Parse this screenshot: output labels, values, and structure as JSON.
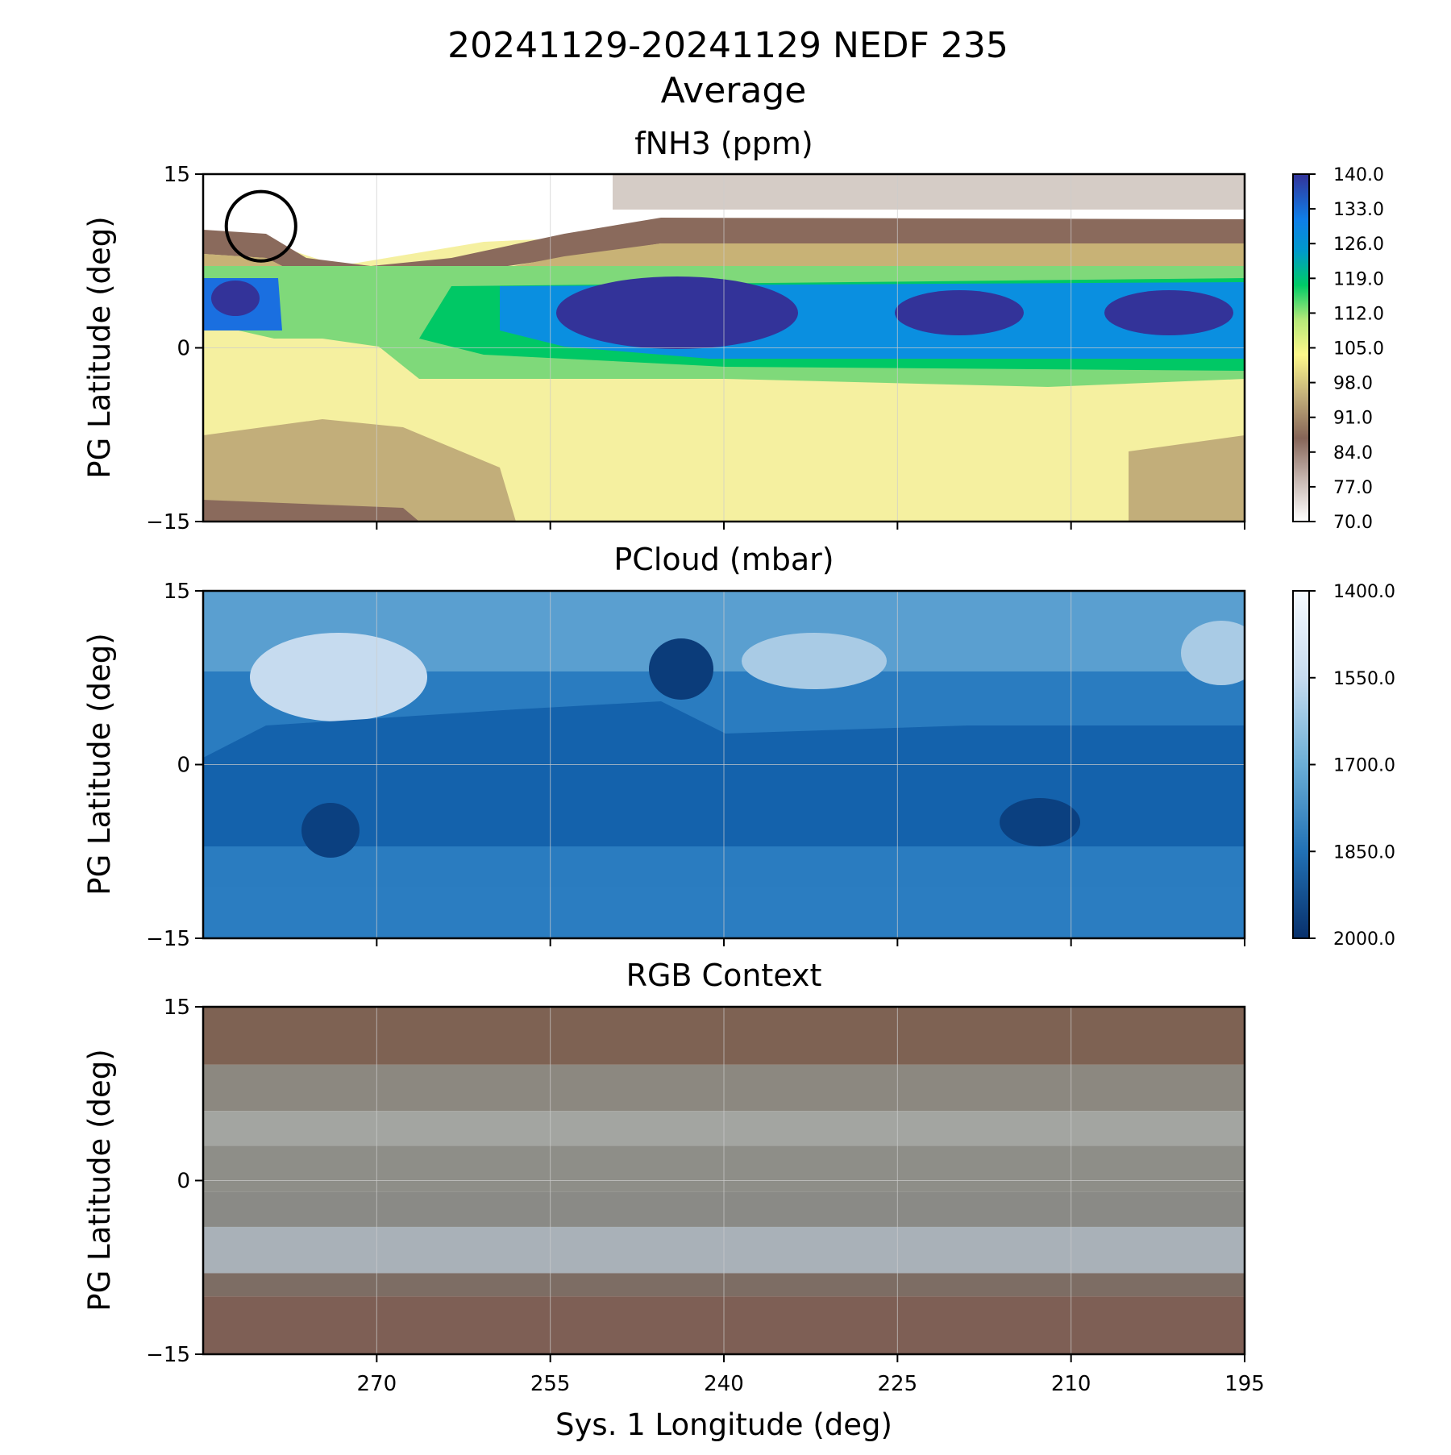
{
  "figure": {
    "title_line1": "20241129-20241129 NEDF 235",
    "title_line2": "Average",
    "xlabel": "Sys. 1 Longitude (deg)"
  },
  "chart_data": [
    {
      "type": "heatmap",
      "title": "fNH3 (ppm)",
      "xlabel": "",
      "ylabel": "PG Latitude (deg)",
      "xlim": [
        285,
        195
      ],
      "ylim": [
        -15,
        15
      ],
      "xticks": [
        270,
        255,
        240,
        225,
        210,
        195
      ],
      "yticks": [
        "15",
        "0",
        "−15"
      ],
      "colormap": "terrain_r",
      "colorbar": {
        "range": [
          70,
          140
        ],
        "ticks": [
          "140.0",
          "133.0",
          "126.0",
          "119.0",
          "112.0",
          "105.0",
          "98.0",
          "91.0",
          "84.0",
          "77.0",
          "70.0"
        ]
      },
      "annotation": {
        "shape": "circle",
        "center_lon": 280,
        "center_lat": 10.5,
        "radius_deg": 3
      },
      "data_description_rows_lat": [
        12,
        10,
        8,
        4,
        2,
        0,
        -2,
        -5,
        -8,
        -11,
        -14
      ],
      "data_profile": {
        "lats": [
          14,
          12,
          10,
          8,
          6,
          4,
          2,
          0,
          -2,
          -4,
          -6,
          -8,
          -10,
          -12,
          -14
        ],
        "west_lon_280": [
          70,
          70,
          92,
          108,
          126,
          132,
          125,
          108,
          104,
          100,
          98,
          96,
          90,
          86,
          80
        ],
        "lon_265": [
          70,
          70,
          72,
          88,
          104,
          110,
          112,
          110,
          108,
          106,
          104,
          100,
          96,
          92,
          88
        ],
        "lon_240": [
          80,
          84,
          92,
          110,
          134,
          140,
          138,
          130,
          120,
          118,
          112,
          106,
          102,
          100,
          98
        ],
        "lon_205": [
          80,
          84,
          92,
          108,
          130,
          138,
          130,
          126,
          118,
          116,
          110,
          104,
          102,
          100,
          98
        ]
      }
    },
    {
      "type": "heatmap",
      "title": "PCloud (mbar)",
      "xlabel": "",
      "ylabel": "PG Latitude (deg)",
      "xlim": [
        285,
        195
      ],
      "ylim": [
        -15,
        15
      ],
      "xticks": [
        270,
        255,
        240,
        225,
        210,
        195
      ],
      "yticks": [
        "15",
        "0",
        "−15"
      ],
      "colormap": "Blues",
      "colorbar": {
        "range": [
          1400,
          2000
        ],
        "ticks": [
          "1400.0",
          "1550.0",
          "1700.0",
          "1850.0",
          "2000.0"
        ]
      },
      "features": [
        {
          "kind": "high-cloud-region",
          "lon": 270,
          "lat": 8,
          "value": 1500
        },
        {
          "kind": "high-cloud-region",
          "lon": 228,
          "lat": 9,
          "value": 1600
        },
        {
          "kind": "high-cloud-region",
          "lon": 192,
          "lat": 8,
          "value": 1600
        },
        {
          "kind": "deep-cloud-region",
          "lon": 240,
          "lat": 7,
          "value": 1970
        },
        {
          "kind": "deep-cloud-region",
          "lon": 270,
          "lat": -5,
          "value": 1950
        },
        {
          "kind": "deep-cloud-region",
          "lon": 207,
          "lat": -4,
          "value": 1970
        }
      ]
    },
    {
      "type": "heatmap",
      "title": "RGB Context",
      "xlabel": "Sys. 1 Longitude (deg)",
      "ylabel": "PG Latitude (deg)",
      "xlim": [
        285,
        195
      ],
      "ylim": [
        -15,
        15
      ],
      "xticks": [
        270,
        255,
        240,
        225,
        210,
        195
      ],
      "yticks": [
        "15",
        "0",
        "−15"
      ],
      "bands": [
        {
          "lat_from": 15,
          "lat_to": 10,
          "color": "#7e6253"
        },
        {
          "lat_from": 10,
          "lat_to": 6,
          "color": "#8c8880"
        },
        {
          "lat_from": 6,
          "lat_to": 3,
          "color": "#a3a5a1"
        },
        {
          "lat_from": 3,
          "lat_to": -1,
          "color": "#8e8e88"
        },
        {
          "lat_from": -1,
          "lat_to": -4,
          "color": "#8a8a86"
        },
        {
          "lat_from": -4,
          "lat_to": -8,
          "color": "#a9b1b8"
        },
        {
          "lat_from": -8,
          "lat_to": -10,
          "color": "#7d6d64"
        },
        {
          "lat_from": -10,
          "lat_to": -15,
          "color": "#7e5f55"
        }
      ]
    }
  ]
}
